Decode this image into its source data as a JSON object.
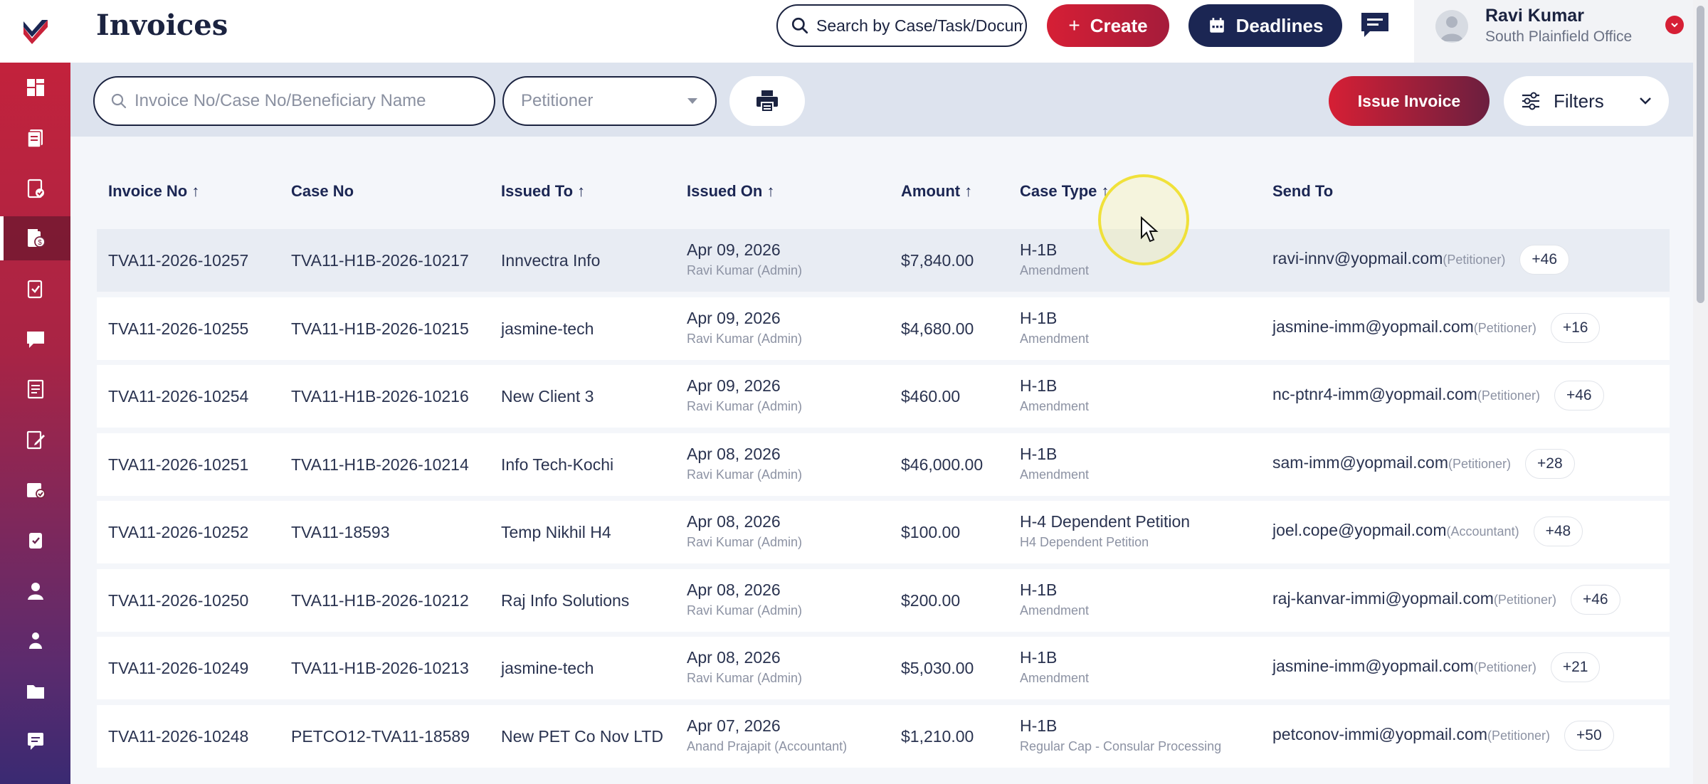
{
  "header": {
    "title": "Invoices",
    "global_search_placeholder": "Search by Case/Task/Document",
    "create_label": "Create",
    "deadlines_label": "Deadlines"
  },
  "user": {
    "name": "Ravi Kumar",
    "office": "South Plainfield Office"
  },
  "toolbar": {
    "search_placeholder": "Invoice No/Case No/Beneficiary Name",
    "petitioner_placeholder": "Petitioner",
    "issue_label": "Issue Invoice",
    "filters_label": "Filters"
  },
  "sidebar": {
    "active_index": 3,
    "items": [
      "dashboard-icon",
      "documents-icon",
      "case-check-icon",
      "invoice-icon",
      "clipboard-check-icon",
      "messages-icon",
      "forms-icon",
      "notes-icon",
      "calendar-check-icon",
      "task-icon",
      "user-icon",
      "team-icon",
      "folder-icon",
      "comments-icon"
    ]
  },
  "table": {
    "columns": [
      "Invoice No ↑",
      "Case No",
      "Issued To ↑",
      "Issued On ↑",
      "Amount ↑",
      "Case Type ↑",
      "Send To"
    ],
    "rows": [
      {
        "invoice": "TVA11-2026-10257",
        "case": "TVA11-H1B-2026-10217",
        "issued_to": "Innvectra Info",
        "date": "Apr 09, 2026",
        "by": "Ravi Kumar (Admin)",
        "amount": "$7,840.00",
        "type": "H-1B",
        "subtype": "Amendment",
        "email": "ravi-innv@yopmail.com",
        "role": "(Petitioner)",
        "more": "+46"
      },
      {
        "invoice": "TVA11-2026-10255",
        "case": "TVA11-H1B-2026-10215",
        "issued_to": "jasmine-tech",
        "date": "Apr 09, 2026",
        "by": "Ravi Kumar (Admin)",
        "amount": "$4,680.00",
        "type": "H-1B",
        "subtype": "Amendment",
        "email": "jasmine-imm@yopmail.com",
        "role": "(Petitioner)",
        "more": "+16"
      },
      {
        "invoice": "TVA11-2026-10254",
        "case": "TVA11-H1B-2026-10216",
        "issued_to": "New Client 3",
        "date": "Apr 09, 2026",
        "by": "Ravi Kumar (Admin)",
        "amount": "$460.00",
        "type": "H-1B",
        "subtype": "Amendment",
        "email": "nc-ptnr4-imm@yopmail.com",
        "role": "(Petitioner)",
        "more": "+46"
      },
      {
        "invoice": "TVA11-2026-10251",
        "case": "TVA11-H1B-2026-10214",
        "issued_to": "Info Tech-Kochi",
        "date": "Apr 08, 2026",
        "by": "Ravi Kumar (Admin)",
        "amount": "$46,000.00",
        "type": "H-1B",
        "subtype": "Amendment",
        "email": "sam-imm@yopmail.com",
        "role": "(Petitioner)",
        "more": "+28"
      },
      {
        "invoice": "TVA11-2026-10252",
        "case": "TVA11-18593",
        "issued_to": "Temp Nikhil H4",
        "date": "Apr 08, 2026",
        "by": "Ravi Kumar (Admin)",
        "amount": "$100.00",
        "type": "H-4 Dependent Petition",
        "subtype": "H4 Dependent Petition",
        "email": "joel.cope@yopmail.com",
        "role": "(Accountant)",
        "more": "+48"
      },
      {
        "invoice": "TVA11-2026-10250",
        "case": "TVA11-H1B-2026-10212",
        "issued_to": "Raj Info Solutions",
        "date": "Apr 08, 2026",
        "by": "Ravi Kumar (Admin)",
        "amount": "$200.00",
        "type": "H-1B",
        "subtype": "Amendment",
        "email": "raj-kanvar-immi@yopmail.com",
        "role": "(Petitioner)",
        "more": "+46"
      },
      {
        "invoice": "TVA11-2026-10249",
        "case": "TVA11-H1B-2026-10213",
        "issued_to": "jasmine-tech",
        "date": "Apr 08, 2026",
        "by": "Ravi Kumar (Admin)",
        "amount": "$5,030.00",
        "type": "H-1B",
        "subtype": "Amendment",
        "email": "jasmine-imm@yopmail.com",
        "role": "(Petitioner)",
        "more": "+21"
      },
      {
        "invoice": "TVA11-2026-10248",
        "case": "PETCO12-TVA11-18589",
        "issued_to": "New PET Co Nov LTD",
        "date": "Apr 07, 2026",
        "by": "Anand Prajapit (Accountant)",
        "amount": "$1,210.00",
        "type": "H-1B",
        "subtype": "Regular Cap - Consular Processing",
        "email": "petconov-immi@yopmail.com",
        "role": "(Petitioner)",
        "more": "+50"
      }
    ]
  }
}
